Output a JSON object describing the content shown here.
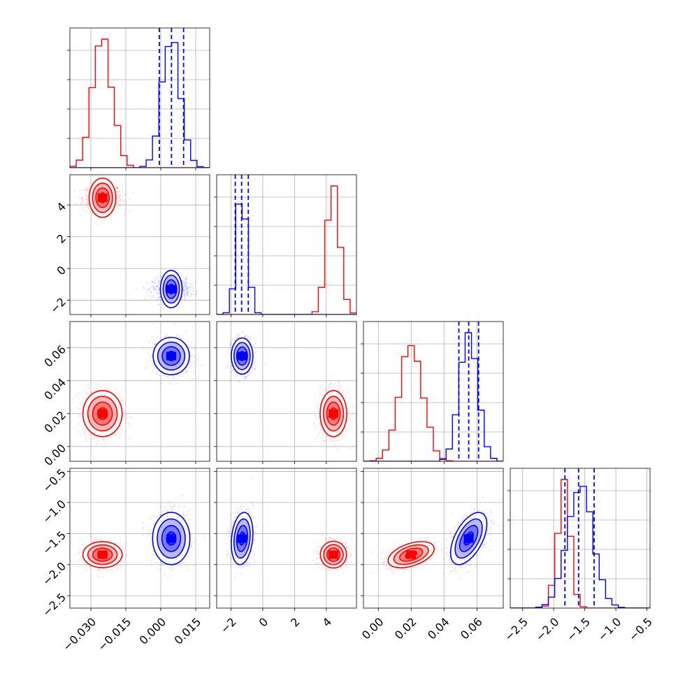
{
  "chart_data": {
    "type": "corner",
    "grid": true,
    "colors": {
      "red": "#ff0000",
      "blue": "#0000ff"
    },
    "parameters": [
      {
        "ticks": [
          -0.03,
          -0.015,
          0.0,
          0.015
        ],
        "tick_labels": [
          "−0.030",
          "−0.015",
          "0.000",
          "0.015"
        ],
        "range": [
          -0.039,
          0.021
        ]
      },
      {
        "ticks": [
          -2,
          0,
          2,
          4
        ],
        "tick_labels": [
          "−2",
          "0",
          "2",
          "4"
        ],
        "range": [
          -2.9,
          5.9
        ]
      },
      {
        "ticks": [
          0.0,
          0.02,
          0.04,
          0.06
        ],
        "tick_labels": [
          "0.00",
          "0.02",
          "0.04",
          "0.06"
        ],
        "range": [
          -0.009,
          0.076
        ]
      },
      {
        "ticks": [
          -2.5,
          -2.0,
          -1.5,
          -1.0,
          -0.5
        ],
        "tick_labels": [
          "−2.5",
          "−2.0",
          "−1.5",
          "−1.0",
          "−0.5"
        ],
        "range": [
          -2.7,
          -0.45
        ]
      }
    ],
    "series": [
      {
        "color": "red",
        "means": [
          -0.025,
          4.45,
          0.02,
          -1.84
        ],
        "sds": [
          0.0042,
          0.42,
          0.007,
          0.105
        ]
      },
      {
        "color": "blue",
        "means": [
          0.0045,
          -1.3,
          0.055,
          -1.58
        ],
        "sds": [
          0.004,
          0.34,
          0.0055,
          0.21
        ]
      }
    ],
    "correlations": [
      {
        "color": "blue",
        "pair": [
          2,
          3
        ],
        "rho": 0.55
      },
      {
        "color": "blue",
        "pair": [
          1,
          3
        ],
        "rho": 0.2
      },
      {
        "color": "red",
        "pair": [
          2,
          3
        ],
        "rho": 0.45
      }
    ],
    "quantile_lines": {
      "color": "blue",
      "values": [
        [
          -0.0006,
          0.0046,
          0.0098
        ],
        [
          -1.73,
          -1.33,
          -0.91
        ],
        [
          0.049,
          0.055,
          0.061
        ],
        [
          -1.82,
          -1.6,
          -1.35
        ]
      ]
    }
  }
}
